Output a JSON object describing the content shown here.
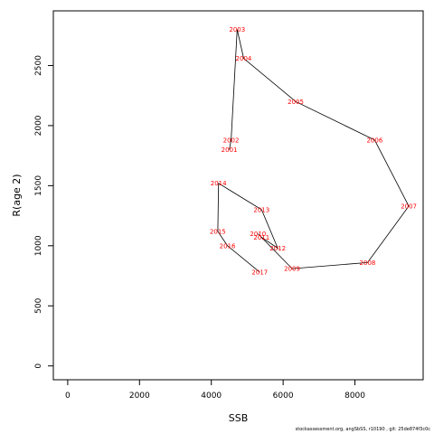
{
  "chart_data": {
    "type": "line",
    "xlabel": "SSB",
    "ylabel": "R(age 2)",
    "xlim": [
      -400,
      9900
    ],
    "ylim": [
      -115,
      2955
    ],
    "x_ticks": [
      0,
      2000,
      4000,
      6000,
      8000
    ],
    "y_ticks": [
      0,
      500,
      1000,
      1500,
      2000,
      2500
    ],
    "grid": false,
    "legend": "none",
    "line_color": "#000000",
    "label_color": "#ff0000",
    "points": [
      {
        "year": "2001",
        "x": 4500,
        "y": 1800
      },
      {
        "year": "2002",
        "x": 4550,
        "y": 1880
      },
      {
        "year": "2003",
        "x": 4720,
        "y": 2800
      },
      {
        "year": "2004",
        "x": 4900,
        "y": 2560
      },
      {
        "year": "2005",
        "x": 6350,
        "y": 2200
      },
      {
        "year": "2006",
        "x": 8550,
        "y": 1880
      },
      {
        "year": "2007",
        "x": 9500,
        "y": 1330
      },
      {
        "year": "2008",
        "x": 8350,
        "y": 860
      },
      {
        "year": "2009",
        "x": 6250,
        "y": 810
      },
      {
        "year": "2010",
        "x": 5300,
        "y": 1100
      },
      {
        "year": "2011",
        "x": 5400,
        "y": 1070
      },
      {
        "year": "2012",
        "x": 5850,
        "y": 980
      },
      {
        "year": "2013",
        "x": 5400,
        "y": 1300
      },
      {
        "year": "2014",
        "x": 4200,
        "y": 1520
      },
      {
        "year": "2015",
        "x": 4180,
        "y": 1120
      },
      {
        "year": "2016",
        "x": 4450,
        "y": 1000
      },
      {
        "year": "2017",
        "x": 5350,
        "y": 780
      }
    ]
  },
  "footer": "stockassessment.org, angSbSS, r10190 , git: 25de874f3c0c"
}
